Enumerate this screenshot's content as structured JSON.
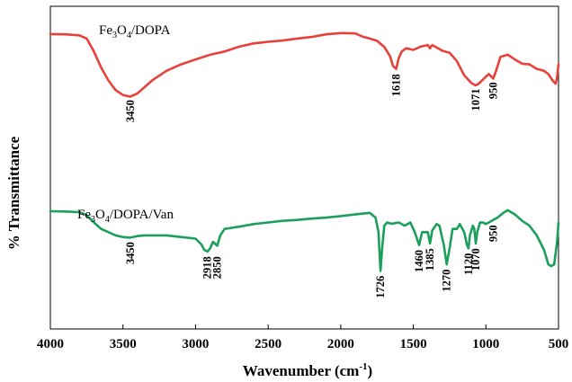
{
  "chart_data": {
    "type": "line",
    "xlabel": "Wavenumber (cm-1)",
    "ylabel": "% Transmittance",
    "xlim": [
      4000,
      500
    ],
    "ylim": [
      0,
      1
    ],
    "x_ticks": [
      4000,
      3500,
      3000,
      2500,
      2000,
      1500,
      1000,
      500
    ],
    "x_reversed": true,
    "y_ticks_shown": false,
    "grid": false,
    "series": [
      {
        "name": "Fe3O4/DOPA",
        "label_parts": [
          [
            "Fe",
            ""
          ],
          [
            "3",
            "sub"
          ],
          [
            "O",
            ""
          ],
          [
            "4",
            "sub"
          ],
          [
            "/DOPA",
            ""
          ]
        ],
        "color": "#e8403a",
        "points": [
          [
            4000,
            0.914
          ],
          [
            3900,
            0.913
          ],
          [
            3800,
            0.91
          ],
          [
            3750,
            0.9
          ],
          [
            3700,
            0.86
          ],
          [
            3650,
            0.81
          ],
          [
            3600,
            0.77
          ],
          [
            3550,
            0.74
          ],
          [
            3500,
            0.725
          ],
          [
            3450,
            0.72
          ],
          [
            3400,
            0.73
          ],
          [
            3350,
            0.75
          ],
          [
            3300,
            0.77
          ],
          [
            3200,
            0.8
          ],
          [
            3100,
            0.82
          ],
          [
            3000,
            0.835
          ],
          [
            2900,
            0.85
          ],
          [
            2800,
            0.86
          ],
          [
            2700,
            0.875
          ],
          [
            2600,
            0.885
          ],
          [
            2500,
            0.89
          ],
          [
            2400,
            0.894
          ],
          [
            2300,
            0.9
          ],
          [
            2200,
            0.905
          ],
          [
            2100,
            0.913
          ],
          [
            2000,
            0.917
          ],
          [
            1900,
            0.916
          ],
          [
            1850,
            0.906
          ],
          [
            1800,
            0.9
          ],
          [
            1750,
            0.893
          ],
          [
            1700,
            0.874
          ],
          [
            1660,
            0.845
          ],
          [
            1640,
            0.815
          ],
          [
            1618,
            0.806
          ],
          [
            1600,
            0.84
          ],
          [
            1580,
            0.86
          ],
          [
            1550,
            0.87
          ],
          [
            1500,
            0.865
          ],
          [
            1450,
            0.875
          ],
          [
            1400,
            0.88
          ],
          [
            1385,
            0.87
          ],
          [
            1370,
            0.88
          ],
          [
            1300,
            0.862
          ],
          [
            1250,
            0.856
          ],
          [
            1200,
            0.83
          ],
          [
            1150,
            0.786
          ],
          [
            1100,
            0.762
          ],
          [
            1071,
            0.755
          ],
          [
            1050,
            0.76
          ],
          [
            1000,
            0.782
          ],
          [
            980,
            0.79
          ],
          [
            950,
            0.776
          ],
          [
            930,
            0.8
          ],
          [
            900,
            0.843
          ],
          [
            850,
            0.85
          ],
          [
            800,
            0.835
          ],
          [
            750,
            0.822
          ],
          [
            700,
            0.82
          ],
          [
            650,
            0.806
          ],
          [
            600,
            0.8
          ],
          [
            570,
            0.79
          ],
          [
            540,
            0.77
          ],
          [
            520,
            0.76
          ],
          [
            510,
            0.78
          ],
          [
            500,
            0.82
          ]
        ],
        "peaks": [
          3450,
          1618,
          1071,
          950
        ]
      },
      {
        "name": "Fe3O4/DOPA/Van",
        "label_parts": [
          [
            "Fe",
            ""
          ],
          [
            "3",
            "sub"
          ],
          [
            "O",
            ""
          ],
          [
            "4",
            "sub"
          ],
          [
            "/DOPA/Van",
            ""
          ]
        ],
        "color": "#1aa05a",
        "points": [
          [
            4000,
            0.365
          ],
          [
            3900,
            0.364
          ],
          [
            3800,
            0.362
          ],
          [
            3750,
            0.352
          ],
          [
            3700,
            0.33
          ],
          [
            3650,
            0.31
          ],
          [
            3600,
            0.3
          ],
          [
            3550,
            0.29
          ],
          [
            3500,
            0.285
          ],
          [
            3450,
            0.283
          ],
          [
            3400,
            0.288
          ],
          [
            3350,
            0.29
          ],
          [
            3300,
            0.29
          ],
          [
            3200,
            0.29
          ],
          [
            3100,
            0.285
          ],
          [
            3000,
            0.28
          ],
          [
            2960,
            0.262
          ],
          [
            2940,
            0.245
          ],
          [
            2918,
            0.24
          ],
          [
            2900,
            0.25
          ],
          [
            2880,
            0.27
          ],
          [
            2850,
            0.258
          ],
          [
            2830,
            0.29
          ],
          [
            2800,
            0.31
          ],
          [
            2700,
            0.317
          ],
          [
            2600,
            0.325
          ],
          [
            2500,
            0.33
          ],
          [
            2400,
            0.335
          ],
          [
            2300,
            0.338
          ],
          [
            2200,
            0.342
          ],
          [
            2100,
            0.345
          ],
          [
            2000,
            0.35
          ],
          [
            1900,
            0.355
          ],
          [
            1800,
            0.36
          ],
          [
            1760,
            0.345
          ],
          [
            1740,
            0.3
          ],
          [
            1726,
            0.18
          ],
          [
            1715,
            0.25
          ],
          [
            1700,
            0.32
          ],
          [
            1680,
            0.33
          ],
          [
            1650,
            0.326
          ],
          [
            1600,
            0.33
          ],
          [
            1560,
            0.32
          ],
          [
            1520,
            0.33
          ],
          [
            1490,
            0.3
          ],
          [
            1460,
            0.26
          ],
          [
            1440,
            0.3
          ],
          [
            1420,
            0.3
          ],
          [
            1400,
            0.3
          ],
          [
            1385,
            0.265
          ],
          [
            1370,
            0.305
          ],
          [
            1340,
            0.325
          ],
          [
            1320,
            0.32
          ],
          [
            1290,
            0.26
          ],
          [
            1270,
            0.2
          ],
          [
            1250,
            0.25
          ],
          [
            1230,
            0.31
          ],
          [
            1200,
            0.31
          ],
          [
            1180,
            0.325
          ],
          [
            1150,
            0.3
          ],
          [
            1130,
            0.26
          ],
          [
            1120,
            0.25
          ],
          [
            1110,
            0.29
          ],
          [
            1090,
            0.32
          ],
          [
            1080,
            0.31
          ],
          [
            1070,
            0.265
          ],
          [
            1060,
            0.3
          ],
          [
            1040,
            0.33
          ],
          [
            1020,
            0.33
          ],
          [
            1000,
            0.325
          ],
          [
            980,
            0.33
          ],
          [
            950,
            0.338
          ],
          [
            920,
            0.345
          ],
          [
            880,
            0.36
          ],
          [
            850,
            0.368
          ],
          [
            800,
            0.355
          ],
          [
            750,
            0.335
          ],
          [
            700,
            0.32
          ],
          [
            650,
            0.29
          ],
          [
            600,
            0.245
          ],
          [
            570,
            0.2
          ],
          [
            550,
            0.195
          ],
          [
            530,
            0.2
          ],
          [
            510,
            0.27
          ],
          [
            500,
            0.33
          ]
        ],
        "peaks": [
          3450,
          2918,
          2850,
          1726,
          1460,
          1385,
          1270,
          1120,
          1070,
          950
        ]
      }
    ],
    "annotations": [
      {
        "text": "3450",
        "x": 3450,
        "y": 0.71,
        "series": 0
      },
      {
        "text": "1618",
        "x": 1618,
        "y": 0.79,
        "series": 0
      },
      {
        "text": "1071",
        "x": 1071,
        "y": 0.745,
        "series": 0
      },
      {
        "text": "950",
        "x": 950,
        "y": 0.765,
        "series": 0
      },
      {
        "text": "3450",
        "x": 3450,
        "y": 0.27,
        "series": 1
      },
      {
        "text": "2918",
        "x": 2918,
        "y": 0.225,
        "series": 1
      },
      {
        "text": "2850",
        "x": 2850,
        "y": 0.225,
        "series": 1
      },
      {
        "text": "1726",
        "x": 1726,
        "y": 0.165,
        "series": 1
      },
      {
        "text": "1460",
        "x": 1460,
        "y": 0.245,
        "series": 1
      },
      {
        "text": "1385",
        "x": 1385,
        "y": 0.25,
        "series": 1
      },
      {
        "text": "1270",
        "x": 1270,
        "y": 0.185,
        "series": 1
      },
      {
        "text": "1120",
        "x": 1120,
        "y": 0.235,
        "series": 1
      },
      {
        "text": "1070",
        "x": 1070,
        "y": 0.25,
        "series": 1
      },
      {
        "text": "950",
        "x": 950,
        "y": 0.322,
        "series": 1
      }
    ]
  }
}
